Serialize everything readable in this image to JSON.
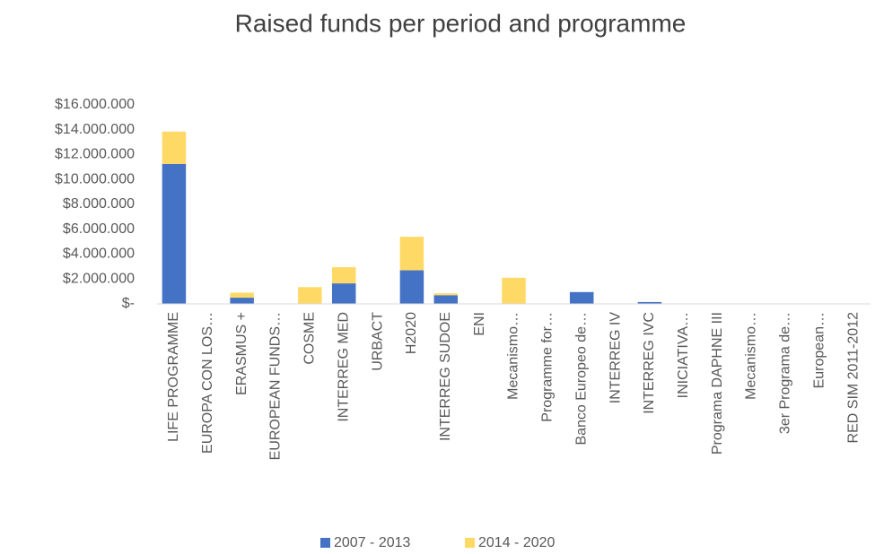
{
  "chart_data": {
    "type": "stacked_bar",
    "title": "Raised funds per period and programme",
    "categories": [
      "LIFE PROGRAMME",
      "EUROPA CON LOS…",
      "ERASMUS +",
      "EUROPEAN FUNDS…",
      "COSME",
      "INTERREG MED",
      "URBACT",
      "H2020",
      "INTERREG SUDOE",
      "ENI",
      "Mecanismo…",
      "Programme for…",
      "Banco Europeo de…",
      "INTERREG IV",
      "INTERREG IVC",
      "INICIATIVA…",
      "Programa DAPHNE III",
      "Mecanismo…",
      "3er Programa de…",
      "European…",
      "RED SIM 2011-2012"
    ],
    "series": [
      {
        "name": "2007 - 2013",
        "color": "#4472c4",
        "values": [
          11250000,
          0,
          500000,
          0,
          0,
          1650000,
          0,
          2700000,
          700000,
          0,
          0,
          0,
          950000,
          0,
          150000,
          0,
          0,
          0,
          0,
          0,
          0
        ]
      },
      {
        "name": "2014 - 2020",
        "color": "#ffd966",
        "values": [
          2600000,
          0,
          400000,
          0,
          1350000,
          1300000,
          0,
          2700000,
          150000,
          0,
          2100000,
          0,
          0,
          0,
          0,
          0,
          0,
          0,
          0,
          0,
          0
        ]
      }
    ],
    "ylim": [
      0,
      16000000
    ],
    "yticks": [
      {
        "value": 0,
        "label": "$-"
      },
      {
        "value": 2000000,
        "label": "$2.000.000"
      },
      {
        "value": 4000000,
        "label": "$4.000.000"
      },
      {
        "value": 6000000,
        "label": "$6.000.000"
      },
      {
        "value": 8000000,
        "label": "$8.000.000"
      },
      {
        "value": 10000000,
        "label": "$10.000.000"
      },
      {
        "value": 12000000,
        "label": "$12.000.000"
      },
      {
        "value": 14000000,
        "label": "$14.000.000"
      },
      {
        "value": 16000000,
        "label": "$16.000.000"
      }
    ],
    "grid": false,
    "legend": "bottom"
  }
}
